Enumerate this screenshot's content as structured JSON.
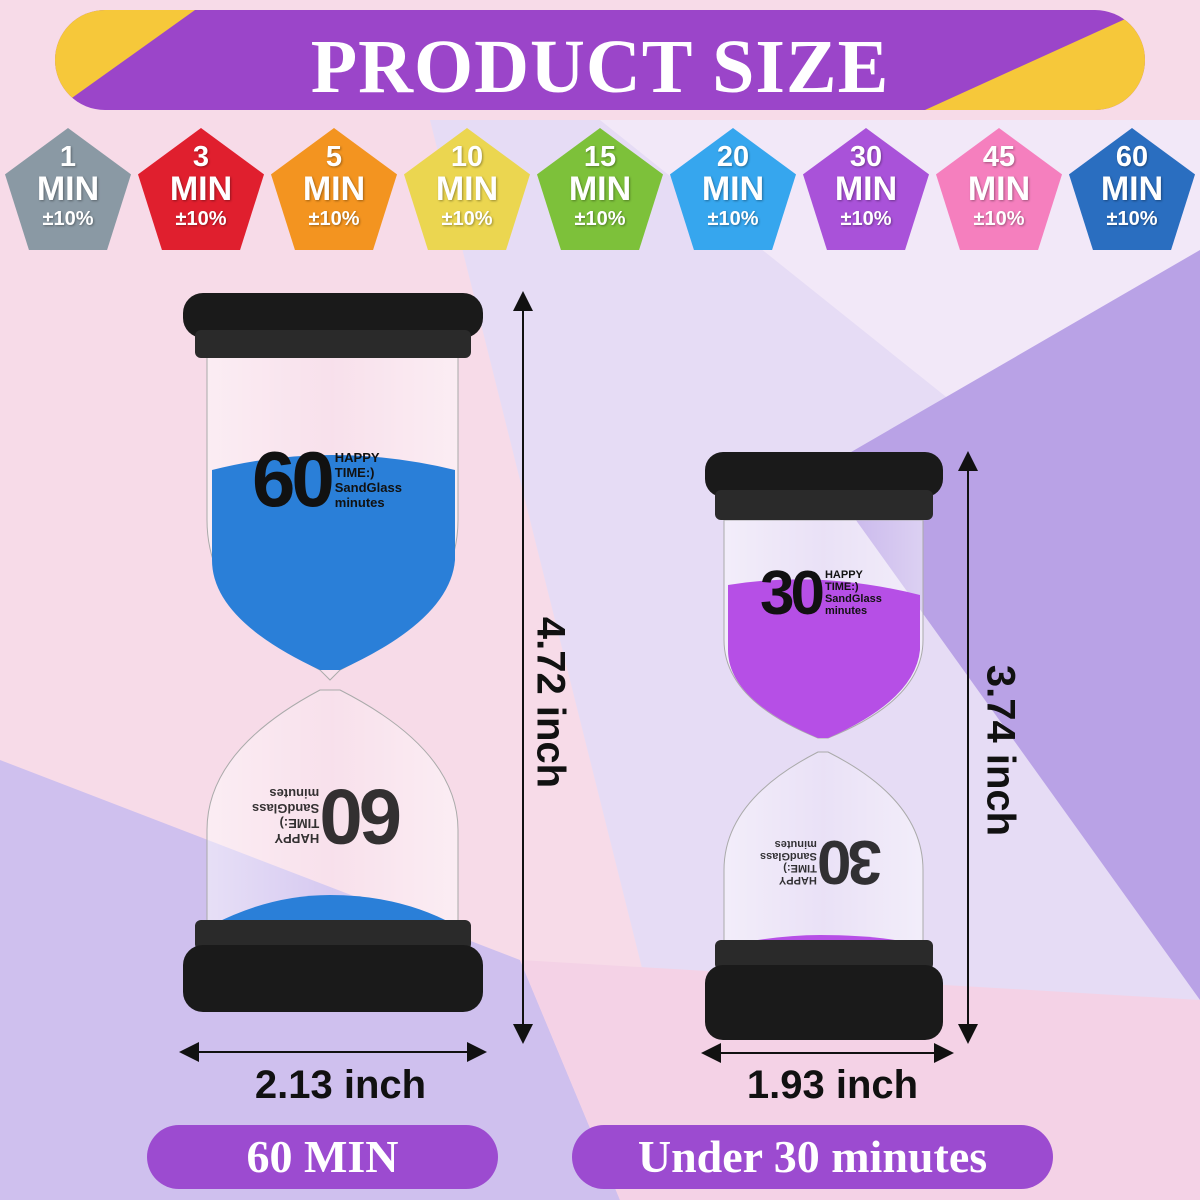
{
  "header": {
    "title": "PRODUCT SIZE"
  },
  "colors": {
    "header_purple": "#9b45c9",
    "header_yellow": "#f6c83a",
    "pill_purple": "#9c4bd0",
    "blue_sand": "#2a7fd8",
    "purple_sand": "#b64fe6"
  },
  "timers": [
    {
      "value": "1",
      "unit": "MIN",
      "tolerance": "±10%",
      "color": "#8a99a4"
    },
    {
      "value": "3",
      "unit": "MIN",
      "tolerance": "±10%",
      "color": "#e01f2e"
    },
    {
      "value": "5",
      "unit": "MIN",
      "tolerance": "±10%",
      "color": "#f39420"
    },
    {
      "value": "10",
      "unit": "MIN",
      "tolerance": "±10%",
      "color": "#ebd650"
    },
    {
      "value": "15",
      "unit": "MIN",
      "tolerance": "±10%",
      "color": "#7dc13a"
    },
    {
      "value": "20",
      "unit": "MIN",
      "tolerance": "±10%",
      "color": "#36a6ee"
    },
    {
      "value": "30",
      "unit": "MIN",
      "tolerance": "±10%",
      "color": "#a952d9"
    },
    {
      "value": "45",
      "unit": "MIN",
      "tolerance": "±10%",
      "color": "#f57fbe"
    },
    {
      "value": "60",
      "unit": "MIN",
      "tolerance": "±10%",
      "color": "#2a6ec0"
    }
  ],
  "large_hourglass": {
    "number": "60",
    "lines": [
      "HAPPY",
      "TIME:)",
      "SandGlass",
      "minutes"
    ],
    "height": "4.72 inch",
    "width": "2.13 inch",
    "label": "60 MIN"
  },
  "small_hourglass": {
    "number": "30",
    "lines": [
      "HAPPY",
      "TIME:)",
      "SandGlass",
      "minutes"
    ],
    "height": "3.74 inch",
    "width": "1.93 inch",
    "label": "Under 30 minutes"
  }
}
